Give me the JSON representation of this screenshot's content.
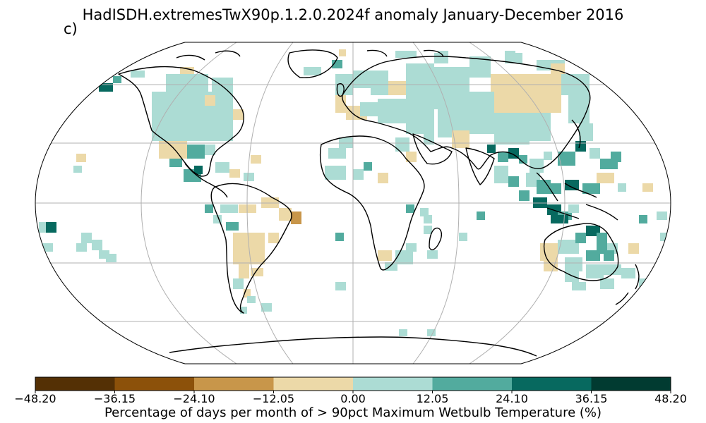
{
  "title": "HadISDH.extremesTwX90p.1.2.0.2024f anomaly January-December 2016",
  "panel_label": "c)",
  "colorbar": {
    "label": "Percentage of days per month of > 90pct Maximum Wetbulb Temperature (%)",
    "ticks": [
      "−48.20",
      "−36.15",
      "−24.10",
      "−12.05",
      "0.00",
      "12.05",
      "24.10",
      "36.15",
      "48.20"
    ],
    "bins": [
      {
        "min": -48.2,
        "max": -36.15,
        "color": "#543005"
      },
      {
        "min": -36.15,
        "max": -24.1,
        "color": "#8c510a"
      },
      {
        "min": -24.1,
        "max": -12.05,
        "color": "#c8964a"
      },
      {
        "min": -12.05,
        "max": 0.0,
        "color": "#ecd9a8"
      },
      {
        "min": 0.0,
        "max": 12.05,
        "color": "#acdcd4"
      },
      {
        "min": 12.05,
        "max": 24.1,
        "color": "#52ab9e"
      },
      {
        "min": 24.1,
        "max": 36.15,
        "color": "#07695f"
      },
      {
        "min": 36.15,
        "max": 48.2,
        "color": "#013b31"
      }
    ]
  },
  "map": {
    "projection": "Robinson",
    "gridlines": true,
    "gridline_color": "#b0b0b0",
    "coastline_color": "#000000"
  }
}
